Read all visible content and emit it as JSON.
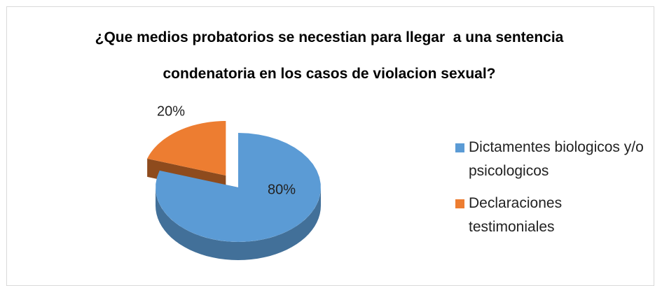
{
  "chart_data": {
    "type": "pie",
    "title": "¿Que medios probatorios se necestian para llegar  a una sentencia condenatoria en los casos de violacion sexual?",
    "categories": [
      "Dictamentes biologicos y/o psicologicos",
      "Declaraciones testimoniales"
    ],
    "values": [
      80,
      20
    ],
    "value_labels": [
      "80%",
      "20%"
    ],
    "colors": [
      "#5b9bd5",
      "#ed7d31"
    ],
    "legend": "right"
  }
}
